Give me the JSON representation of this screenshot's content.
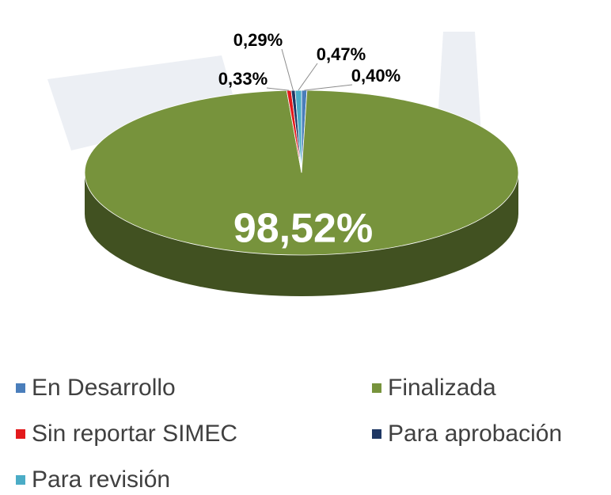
{
  "chart_data": {
    "type": "pie3d",
    "categories": [
      "En Desarrollo",
      "Finalizada",
      "Sin reportar SIMEC",
      "Para aprobación",
      "Para revisión"
    ],
    "values": [
      0.4,
      98.52,
      0.33,
      0.29,
      0.47
    ],
    "value_labels": [
      "0,40%",
      "98,52%",
      "0,33%",
      "0,29%",
      "0,47%"
    ],
    "colors": [
      "#4a7ebb",
      "#77933c",
      "#e31a1c",
      "#1f3864",
      "#4bacc6"
    ],
    "legend": "bottom"
  }
}
